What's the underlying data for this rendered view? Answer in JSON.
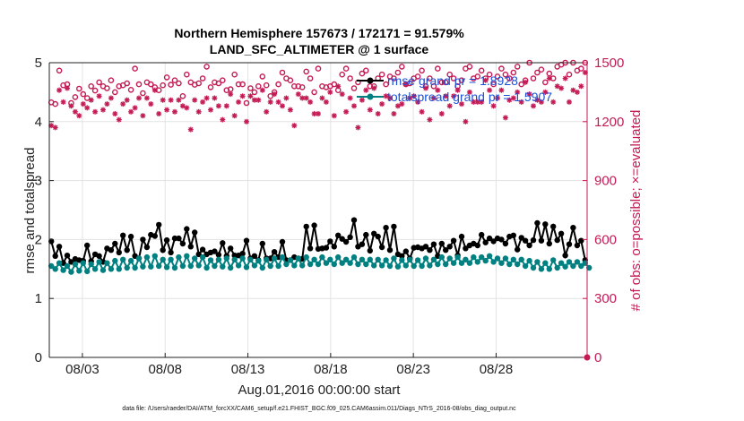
{
  "chart_data": {
    "type": "line",
    "title": "Northern Hemisphere 157673 / 172171 = 91.579%",
    "subtitle": "LAND_SFC_ALTIMETER @ 1 surface",
    "xlabel": "Aug.01,2016 00:00:00 start",
    "ylabel": "rmse and totalspread",
    "ylabel_right": "# of obs: o=possible; ×=evaluated",
    "xlim": [
      1,
      33.5
    ],
    "ylim": [
      0,
      5
    ],
    "ylim_right": [
      0,
      1500
    ],
    "x_ticks": [
      3,
      8,
      13,
      18,
      23,
      28
    ],
    "x_tick_labels": [
      "08/03",
      "08/08",
      "08/13",
      "08/18",
      "08/23",
      "08/28"
    ],
    "y_ticks": [
      0,
      1,
      2,
      3,
      4,
      5
    ],
    "y_tick_labels": [
      "0",
      "1",
      "2",
      "3",
      "4",
      "5"
    ],
    "y_right_ticks": [
      0,
      300,
      600,
      900,
      1200,
      1500
    ],
    "y_right_tick_labels": [
      "0",
      "300",
      "600",
      "900",
      "1200",
      "1500"
    ],
    "grid": true,
    "legend": {
      "location": "top-right",
      "entries": [
        {
          "label": "rmse grand pr = 1.8928",
          "color": "#000000"
        },
        {
          "label": "totalspread grand pr = 1.5907",
          "color": "#008080"
        }
      ]
    },
    "series": [
      {
        "name": "rmse",
        "color": "#000000",
        "axis": "left",
        "values": [
          1.97,
          1.72,
          1.88,
          1.6,
          1.73,
          1.62,
          1.67,
          1.65,
          1.64,
          1.9,
          1.63,
          1.75,
          1.72,
          1.62,
          1.85,
          1.82,
          1.93,
          1.78,
          2.07,
          1.82,
          2.05,
          1.72,
          1.68,
          2.0,
          1.87,
          2.08,
          2.06,
          2.25,
          1.82,
          1.99,
          1.78,
          2.02,
          2.02,
          1.93,
          2.18,
          1.88,
          2.12,
          1.75,
          1.83,
          1.75,
          1.78,
          1.8,
          1.74,
          1.94,
          1.72,
          1.85,
          1.73,
          1.73,
          1.76,
          1.98,
          1.68,
          1.72,
          1.65,
          1.93,
          1.68,
          1.68,
          1.79,
          1.7,
          1.96,
          1.65,
          1.65,
          1.7,
          1.68,
          1.67,
          2.22,
          1.85,
          2.24,
          1.84,
          1.85,
          1.86,
          1.97,
          1.88,
          2.07,
          2.01,
          1.96,
          2.04,
          2.33,
          1.88,
          1.92,
          2.08,
          1.81,
          2.1,
          2.05,
          1.87,
          2.2,
          1.82,
          2.22,
          1.75,
          1.72,
          1.8,
          1.68,
          1.86,
          1.87,
          1.85,
          1.88,
          1.82,
          1.92,
          1.72,
          1.93,
          1.82,
          1.88,
          1.98,
          1.73,
          2.05,
          1.85,
          1.9,
          1.93,
          1.9,
          2.08,
          1.95,
          2.02,
          1.97,
          2.02,
          2.0,
          1.93,
          2.05,
          2.07,
          1.83,
          2.03,
          1.98,
          1.9,
          1.99,
          2.28,
          1.98,
          2.26,
          1.93,
          2.22,
          1.99,
          2.1,
          1.73,
          1.92,
          2.2,
          1.9,
          1.98,
          1.65
        ]
      },
      {
        "name": "totalspread",
        "color": "#008080",
        "axis": "left",
        "values": [
          1.55,
          1.5,
          1.6,
          1.48,
          1.55,
          1.45,
          1.58,
          1.47,
          1.6,
          1.46,
          1.58,
          1.5,
          1.62,
          1.48,
          1.6,
          1.5,
          1.64,
          1.5,
          1.66,
          1.52,
          1.64,
          1.52,
          1.68,
          1.54,
          1.7,
          1.54,
          1.72,
          1.55,
          1.66,
          1.53,
          1.66,
          1.52,
          1.7,
          1.55,
          1.72,
          1.55,
          1.68,
          1.56,
          1.7,
          1.52,
          1.65,
          1.55,
          1.66,
          1.54,
          1.68,
          1.52,
          1.66,
          1.56,
          1.68,
          1.53,
          1.66,
          1.56,
          1.64,
          1.52,
          1.66,
          1.55,
          1.68,
          1.55,
          1.7,
          1.58,
          1.65,
          1.56,
          1.68,
          1.56,
          1.7,
          1.58,
          1.66,
          1.58,
          1.7,
          1.6,
          1.66,
          1.58,
          1.7,
          1.6,
          1.66,
          1.6,
          1.7,
          1.58,
          1.66,
          1.58,
          1.66,
          1.56,
          1.66,
          1.56,
          1.65,
          1.55,
          1.68,
          1.54,
          1.65,
          1.56,
          1.66,
          1.55,
          1.65,
          1.55,
          1.68,
          1.56,
          1.66,
          1.58,
          1.7,
          1.58,
          1.68,
          1.6,
          1.7,
          1.6,
          1.66,
          1.6,
          1.7,
          1.62,
          1.7,
          1.64,
          1.72,
          1.62,
          1.68,
          1.6,
          1.68,
          1.58,
          1.66,
          1.58,
          1.66,
          1.55,
          1.64,
          1.52,
          1.62,
          1.5,
          1.6,
          1.5,
          1.65,
          1.52,
          1.6,
          1.54,
          1.62,
          1.55,
          1.62,
          1.55,
          1.6,
          1.52
        ]
      },
      {
        "name": "obs possible",
        "color": "#c41a55",
        "axis": "right",
        "marker": "circle",
        "values": [
          1298,
          1290,
          1460,
          1385,
          1390,
          1295,
          1325,
          1368,
          1340,
          1320,
          1380,
          1358,
          1400,
          1380,
          1370,
          1410,
          1350,
          1380,
          1385,
          1395,
          1362,
          1470,
          1390,
          1345,
          1400,
          1390,
          1375,
          1360,
          1385,
          1425,
          1388,
          1410,
          1395,
          1330,
          1440,
          1400,
          1388,
          1395,
          1420,
          1480,
          1375,
          1400,
          1395,
          1410,
          1360,
          1365,
          1440,
          1390,
          1390,
          1295,
          1370,
          1350,
          1380,
          1430,
          1385,
          1330,
          1350,
          1390,
          1450,
          1420,
          1410,
          1380,
          1380,
          1375,
          1455,
          1420,
          1350,
          1470,
          1380,
          1375,
          1380,
          1390,
          1360,
          1440,
          1470,
          1420,
          1370,
          1400,
          1445,
          1460,
          1380,
          1380,
          1420,
          1440,
          1390,
          1430,
          1420,
          1450,
          1480,
          1390,
          1395,
          1420,
          1430,
          1460,
          1380,
          1420,
          1380,
          1470,
          1400,
          1400,
          1440,
          1420,
          1380,
          1410,
          1470,
          1480,
          1420,
          1430,
          1460,
          1420,
          1440,
          1390,
          1430,
          1470,
          1440,
          1420,
          1450,
          1480,
          1390,
          1410,
          1500,
          1420,
          1450,
          1465,
          1400,
          1445,
          1420,
          1480,
          1490,
          1500,
          1440,
          1500,
          1460,
          1470,
          1500
        ]
      },
      {
        "name": "obs evaluated",
        "color": "#c41a55",
        "axis": "right",
        "marker": "asterisk",
        "values": [
          1180,
          1170,
          1360,
          1300,
          1370,
          1280,
          1250,
          1230,
          1290,
          1270,
          1310,
          1250,
          1330,
          1260,
          1290,
          1320,
          1240,
          1210,
          1290,
          1310,
          1250,
          1270,
          1320,
          1230,
          1320,
          1290,
          1360,
          1240,
          1310,
          1260,
          1310,
          1250,
          1310,
          1280,
          1270,
          1160,
          1310,
          1250,
          1300,
          1320,
          1260,
          1320,
          1280,
          1210,
          1280,
          1340,
          1230,
          1300,
          1330,
          1200,
          1330,
          1310,
          1310,
          1360,
          1250,
          1300,
          1340,
          1300,
          1280,
          1320,
          1260,
          1180,
          1340,
          1320,
          1320,
          1300,
          1240,
          1240,
          1320,
          1300,
          1350,
          1230,
          1380,
          1340,
          1250,
          1320,
          1280,
          1170,
          1310,
          1360,
          1260,
          1370,
          1240,
          1290,
          1330,
          1320,
          1240,
          1280,
          1290,
          1390,
          1320,
          1330,
          1300,
          1250,
          1370,
          1210,
          1320,
          1360,
          1240,
          1330,
          1280,
          1330,
          1360,
          1290,
          1200,
          1350,
          1300,
          1300,
          1300,
          1410,
          1360,
          1280,
          1320,
          1360,
          1220,
          1310,
          1320,
          1350,
          1300,
          1400,
          1340,
          1280,
          1310,
          1300,
          1350,
          1420,
          1300,
          1380,
          1370,
          1420,
          1300,
          1360,
          1350,
          1380,
          1450
        ]
      }
    ]
  },
  "footnote": "data file: /Users/raeder/DAI/ATM_forcXX/CAM6_setup/f.e21.FHIST_BGC.f09_025.CAM6assim.011/Diags_NTrS_2016-08/obs_diag_output.nc",
  "colors": {
    "rmse": "#000000",
    "spread": "#008080",
    "obs": "#c41a55",
    "legend_text": "#1a4fd8"
  }
}
